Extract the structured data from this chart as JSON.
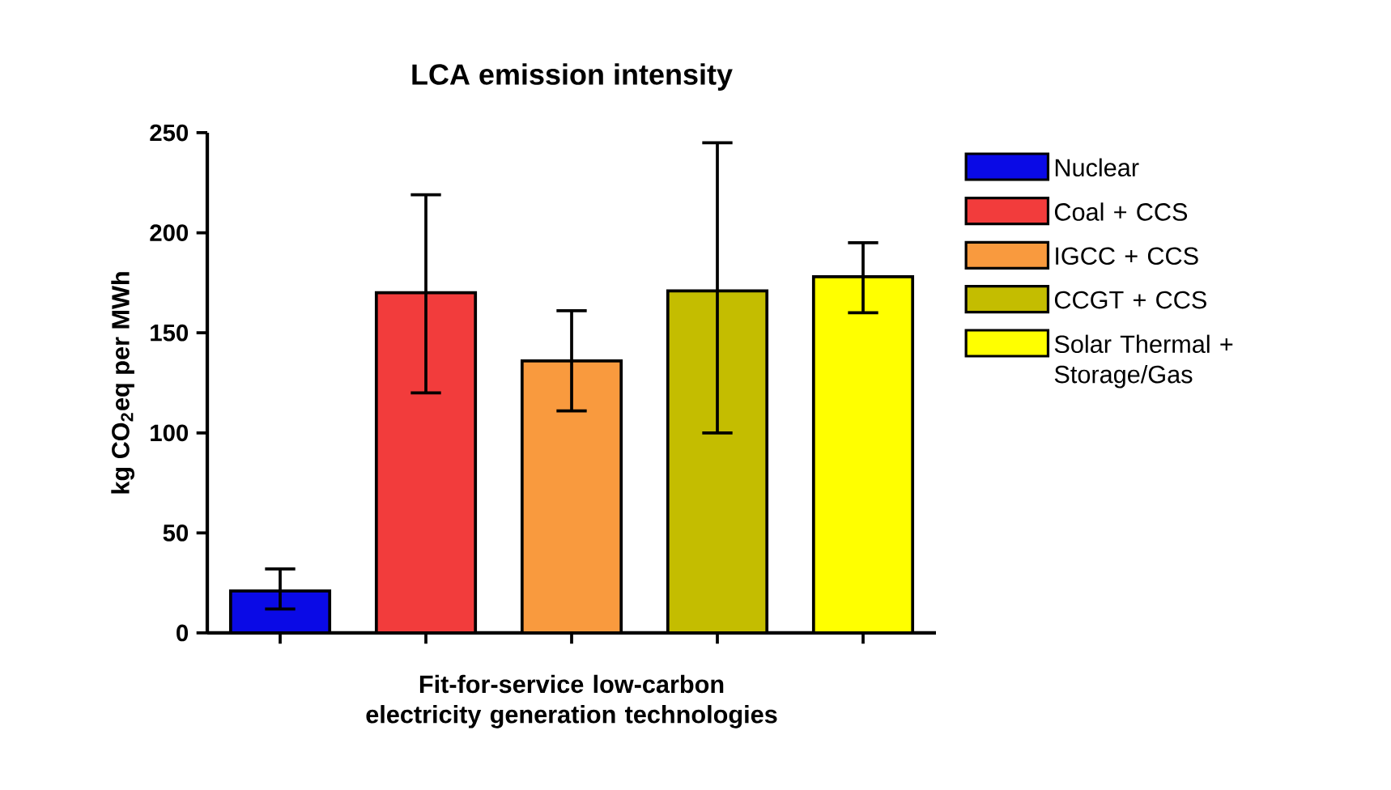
{
  "chart_data": {
    "type": "bar",
    "title": "LCA emission intensity",
    "xlabel": "Fit-for-service low-carbon electricity generation technologies",
    "ylabel": "kg CO$_{2}$eq per MWh",
    "categories": [
      null,
      null,
      null,
      null,
      null
    ],
    "series": [
      {
        "name": "Nuclear",
        "color": "#0a0ae6",
        "values": [
          21,
          null,
          null,
          null,
          null
        ],
        "errors": [
          [
            12,
            32
          ],
          null,
          null,
          null,
          null
        ]
      },
      {
        "name": "Coal + CCS",
        "color": "#f23c3c",
        "values": [
          null,
          170,
          null,
          null,
          null
        ],
        "errors": [
          null,
          [
            120,
            219
          ],
          null,
          null,
          null
        ]
      },
      {
        "name": "IGCC + CCS",
        "color": "#f99a3e",
        "values": [
          null,
          null,
          136,
          null,
          null
        ],
        "errors": [
          null,
          null,
          [
            111,
            161
          ],
          null,
          null
        ]
      },
      {
        "name": "CCGT + CCS",
        "color": "#c4bd00",
        "values": [
          null,
          null,
          null,
          171,
          null
        ],
        "errors": [
          null,
          null,
          null,
          [
            100,
            245
          ],
          null
        ]
      },
      {
        "name": "Solar Thermal + Storage/Gas",
        "color": "#ffff00",
        "values": [
          null,
          null,
          null,
          null,
          178
        ],
        "errors": [
          null,
          null,
          null,
          null,
          [
            160,
            195
          ]
        ]
      }
    ],
    "ylim": [
      0,
      250
    ],
    "yticks": [
      0,
      50,
      100,
      150,
      200,
      250
    ],
    "grid": false,
    "legend": "right"
  }
}
